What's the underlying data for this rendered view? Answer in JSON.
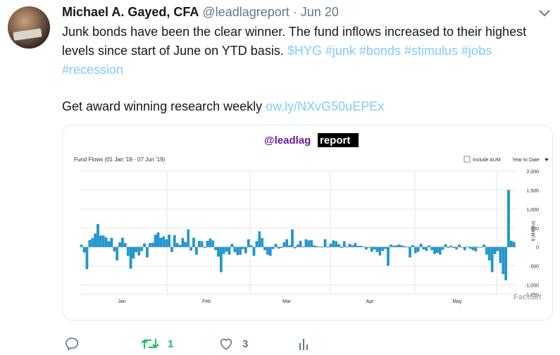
{
  "tweet": {
    "author_name": "Michael A. Gayed, CFA",
    "author_handle": "@leadlagreport",
    "separator": "·",
    "date": "Jun 20",
    "text_main": "Junk bonds have been the clear winner. The fund inflows increased to their highest levels since start of June on YTD basis. ",
    "hashtags": [
      "$HYG",
      "#junk",
      "#bonds",
      "#stimulus",
      "#jobs",
      "#recession"
    ],
    "cta_text": "Get award winning research weekly ",
    "cta_link": "ow.ly/NXvG50uEPEx"
  },
  "card": {
    "logo_prefix": "@leadlag",
    "logo_suffix": "report",
    "chart_title": "Fund Flows (01 Jan '19 - 07 Jun '19)",
    "include_aum_label": "Include AUM",
    "period_select": "Year to Date",
    "source_watermark": "FactSet"
  },
  "actions": {
    "reply_count": "",
    "retweet_count": "1",
    "like_count": "3"
  },
  "colors": {
    "bar": "#1a9ad6",
    "bar_stroke": "#0f6e9c",
    "link": "#1da1f2",
    "retweet": "#17bf63"
  },
  "chart_data": {
    "type": "bar",
    "title": "Fund Flows (01 Jan '19 - 07 Jun '19)",
    "ylabel": "$ (Millions)",
    "ylim": [
      -1250,
      2000
    ],
    "yticks": [
      2000,
      1500,
      1000,
      500,
      0,
      -500,
      -1000,
      -1250
    ],
    "ytick_labels": [
      "2,000",
      "1,500",
      "1,000",
      "500",
      "0",
      "-500",
      "-1,000",
      "-1,250"
    ],
    "xtick_labels": [
      "Jan",
      "Feb",
      "Mar",
      "Apr",
      "May"
    ],
    "grid": true,
    "values": [
      60,
      -140,
      -580,
      180,
      230,
      350,
      600,
      300,
      300,
      250,
      150,
      240,
      -110,
      -350,
      120,
      240,
      100,
      -230,
      -570,
      -300,
      -130,
      -220,
      -100,
      90,
      -270,
      100,
      110,
      320,
      380,
      240,
      280,
      200,
      320,
      -130,
      310,
      100,
      50,
      230,
      130,
      460,
      -90,
      240,
      -200,
      160,
      150,
      -20,
      160,
      220,
      170,
      -80,
      -250,
      -660,
      -180,
      -120,
      -200,
      80,
      -130,
      -210,
      -200,
      -50,
      -160,
      200,
      40,
      -230,
      150,
      410,
      230,
      -80,
      -200,
      -230,
      -50,
      80,
      -40,
      -20,
      120,
      200,
      40,
      460,
      -30,
      60,
      160,
      10,
      200,
      170,
      180,
      40,
      20,
      10,
      5,
      200,
      -5,
      80,
      170,
      150,
      70,
      -20,
      150,
      10,
      80,
      40,
      100,
      30,
      30,
      10,
      -60,
      -10,
      -120,
      -60,
      -130,
      -220,
      -100,
      -50,
      -490,
      60,
      30,
      40,
      60,
      40,
      20,
      10,
      -270,
      50,
      -160,
      -120,
      80,
      -60,
      -100,
      40,
      -80,
      -180,
      -150,
      -200,
      -70,
      70,
      -20,
      30,
      -20,
      -60,
      60,
      -10,
      -80,
      10,
      -40,
      -80,
      -110,
      -10,
      -10,
      60,
      -200,
      -350,
      -660,
      -180,
      -100,
      -420,
      -710,
      -870,
      1500,
      160,
      130
    ]
  }
}
